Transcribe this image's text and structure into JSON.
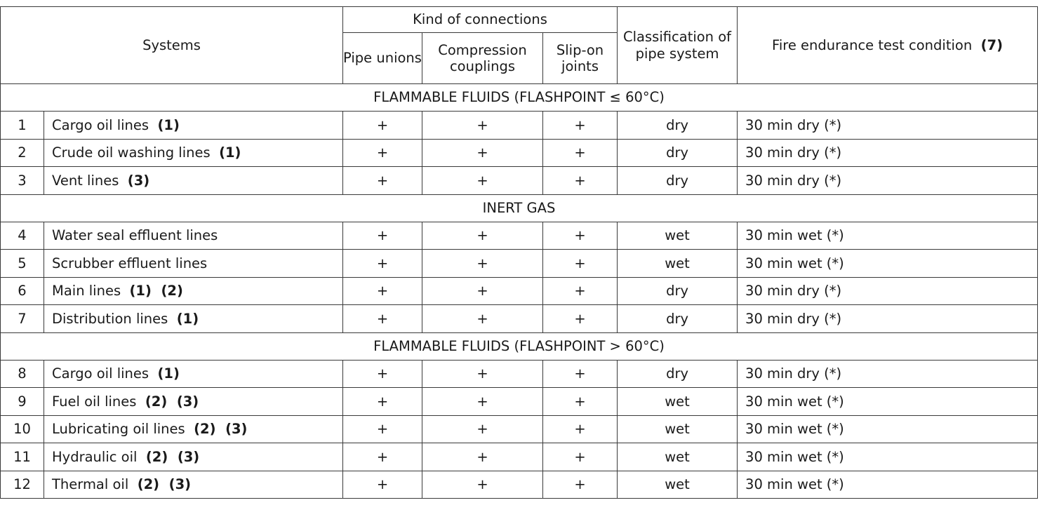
{
  "header": {
    "systems": "Systems",
    "kind_of_connections": "Kind of connections",
    "pipe_unions": "Pipe unions",
    "compression_couplings": "Compression couplings",
    "slip_on_joints": "Slip-on joints",
    "classification": "Classification of pipe system",
    "fire_endurance": "Fire endurance test condition",
    "fire_endurance_ref": "(7)"
  },
  "sections": [
    {
      "title": "FLAMMABLE FLUIDS (FLASHPOINT ≤ 60°C)",
      "rows": [
        {
          "no": "1",
          "system": "Cargo oil lines",
          "refs": "(1)",
          "pipe_unions": "+",
          "compression": "+",
          "slip_on": "+",
          "classification": "dry",
          "test": "30 min dry (*)"
        },
        {
          "no": "2",
          "system": "Crude oil washing lines",
          "refs": "(1)",
          "pipe_unions": "+",
          "compression": "+",
          "slip_on": "+",
          "classification": "dry",
          "test": "30 min dry (*)"
        },
        {
          "no": "3",
          "system": "Vent lines",
          "refs": "(3)",
          "pipe_unions": "+",
          "compression": "+",
          "slip_on": "+",
          "classification": "dry",
          "test": "30 min dry (*)"
        }
      ]
    },
    {
      "title": "INERT GAS",
      "rows": [
        {
          "no": "4",
          "system": "Water seal effluent lines",
          "refs": "",
          "pipe_unions": "+",
          "compression": "+",
          "slip_on": "+",
          "classification": "wet",
          "test": "30 min wet (*)"
        },
        {
          "no": "5",
          "system": "Scrubber effluent lines",
          "refs": "",
          "pipe_unions": "+",
          "compression": "+",
          "slip_on": "+",
          "classification": "wet",
          "test": "30 min wet (*)"
        },
        {
          "no": "6",
          "system": "Main lines",
          "refs": "(1)  (2)",
          "pipe_unions": "+",
          "compression": "+",
          "slip_on": "+",
          "classification": "dry",
          "test": "30 min dry (*)"
        },
        {
          "no": "7",
          "system": "Distribution lines",
          "refs": "(1)",
          "pipe_unions": "+",
          "compression": "+",
          "slip_on": "+",
          "classification": "dry",
          "test": "30 min dry (*)"
        }
      ]
    },
    {
      "title": "FLAMMABLE FLUIDS (FLASHPOINT > 60°C)",
      "rows": [
        {
          "no": "8",
          "system": "Cargo oil lines",
          "refs": "(1)",
          "pipe_unions": "+",
          "compression": "+",
          "slip_on": "+",
          "classification": "dry",
          "test": "30 min dry (*)"
        },
        {
          "no": "9",
          "system": "Fuel oil lines",
          "refs": "(2)  (3)",
          "pipe_unions": "+",
          "compression": "+",
          "slip_on": "+",
          "classification": "wet",
          "test": "30 min wet (*)"
        },
        {
          "no": "10",
          "system": "Lubricating oil lines",
          "refs": "(2)  (3)",
          "pipe_unions": "+",
          "compression": "+",
          "slip_on": "+",
          "classification": "wet",
          "test": "30 min wet (*)"
        },
        {
          "no": "11",
          "system": "Hydraulic oil",
          "refs": "(2)  (3)",
          "pipe_unions": "+",
          "compression": "+",
          "slip_on": "+",
          "classification": "wet",
          "test": "30 min wet (*)"
        },
        {
          "no": "12",
          "system": "Thermal oil",
          "refs": "(2)  (3)",
          "pipe_unions": "+",
          "compression": "+",
          "slip_on": "+",
          "classification": "wet",
          "test": "30 min wet (*)"
        }
      ]
    }
  ]
}
